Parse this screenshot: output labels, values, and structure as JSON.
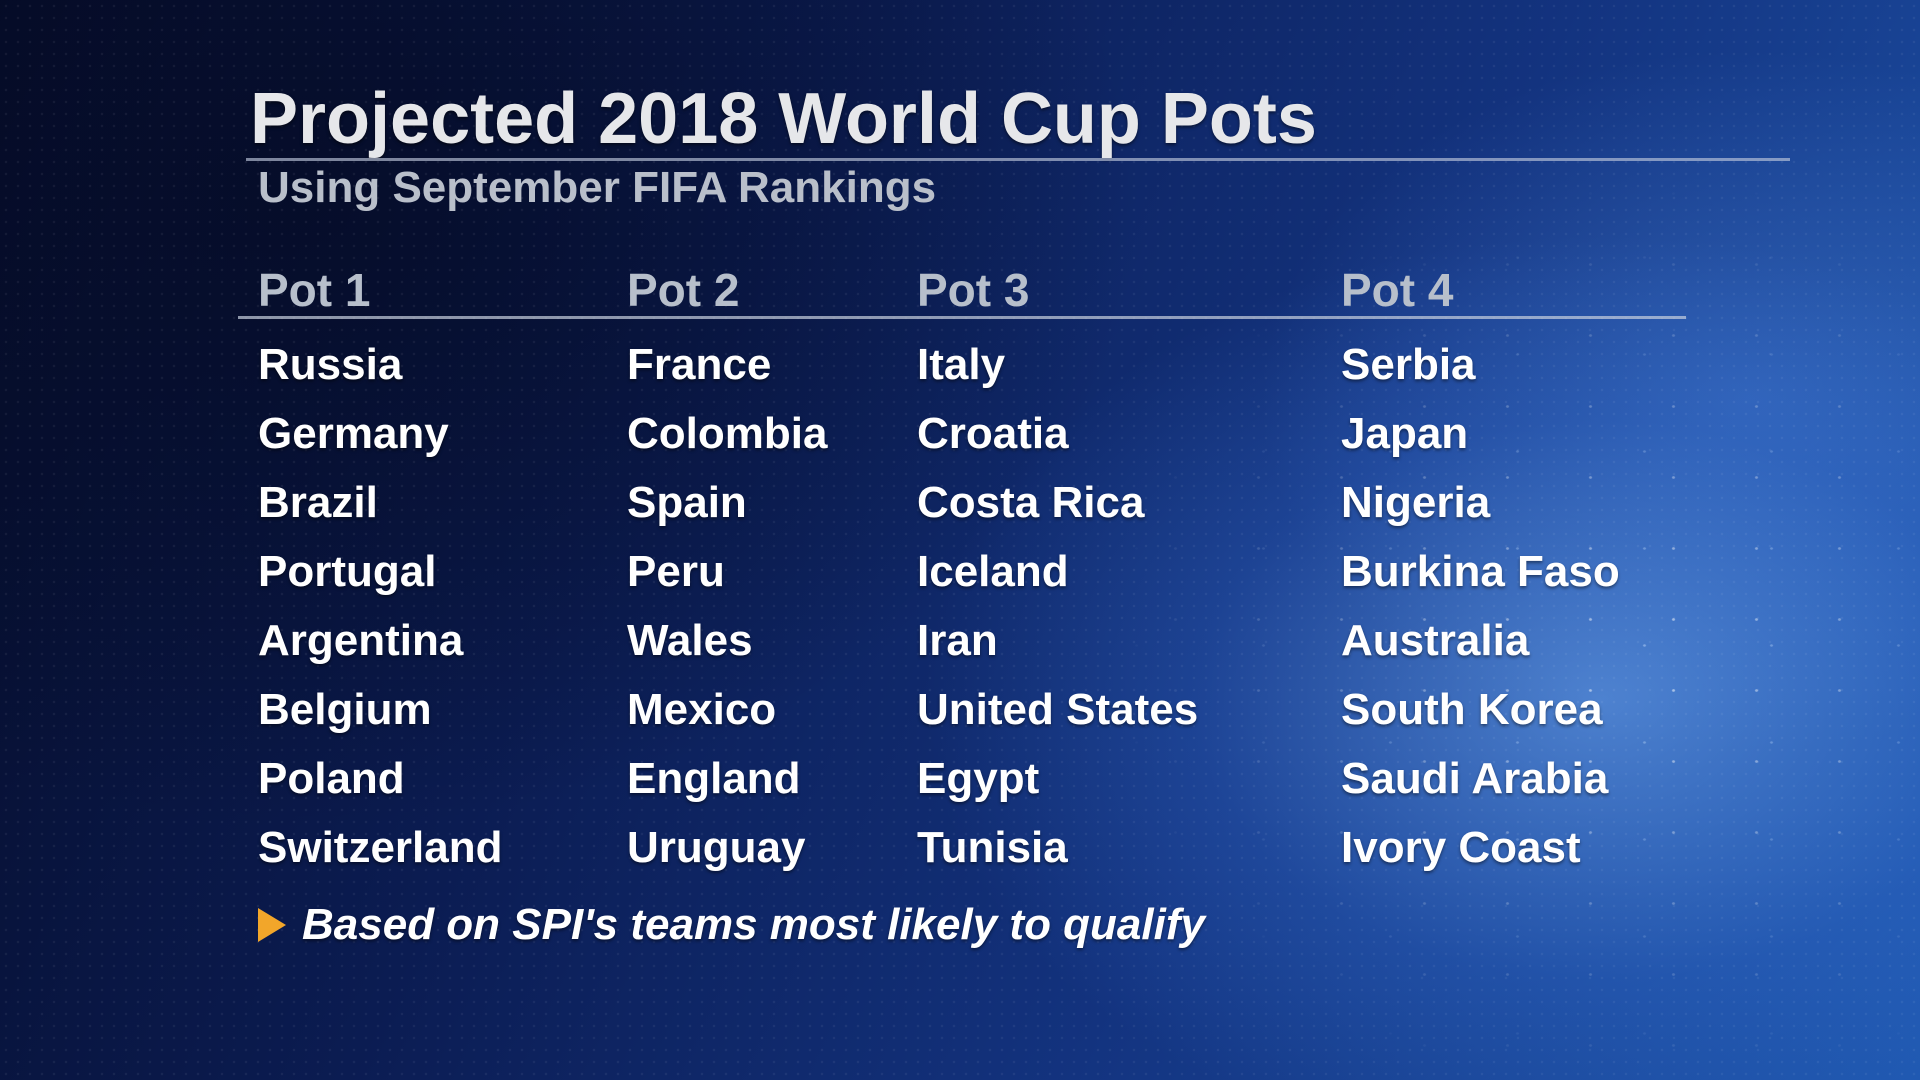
{
  "title": "Projected 2018 World Cup Pots",
  "subtitle": "Using September FIFA Rankings",
  "pots": [
    {
      "label": "Pot 1",
      "teams": [
        "Russia",
        "Germany",
        "Brazil",
        "Portugal",
        "Argentina",
        "Belgium",
        "Poland",
        "Switzerland"
      ]
    },
    {
      "label": "Pot 2",
      "teams": [
        "France",
        "Colombia",
        "Spain",
        "Peru",
        "Wales",
        "Mexico",
        "England",
        "Uruguay"
      ]
    },
    {
      "label": "Pot 3",
      "teams": [
        "Italy",
        "Croatia",
        "Costa Rica",
        "Iceland",
        "Iran",
        "United States",
        "Egypt",
        "Tunisia"
      ]
    },
    {
      "label": "Pot 4",
      "teams": [
        "Serbia",
        "Japan",
        "Nigeria",
        "Burkina Faso",
        "Australia",
        "South Korea",
        "Saudi Arabia",
        "Ivory Coast"
      ]
    }
  ],
  "footnote": {
    "icon": "play-arrow-icon",
    "text": "Based on SPI's teams most likely to qualify"
  },
  "colors": {
    "arrow": "#f2a62a",
    "header_text": "#b7bfcb",
    "team_text": "#ffffff"
  }
}
